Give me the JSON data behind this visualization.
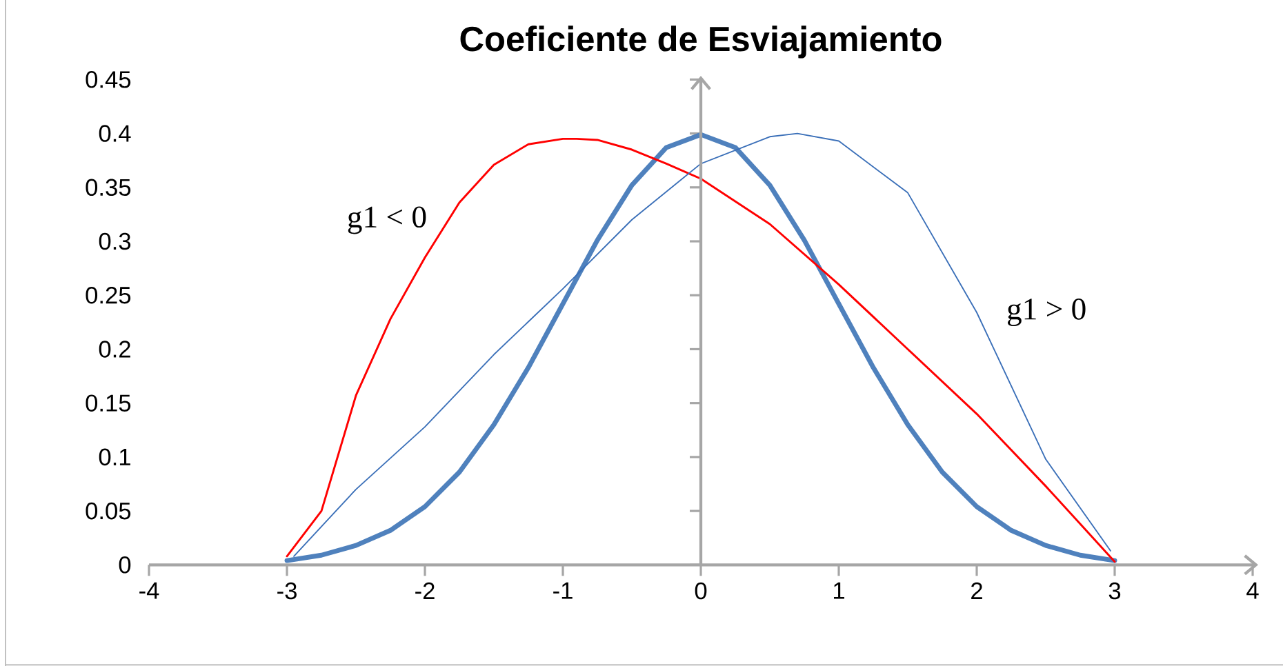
{
  "chart_data": {
    "type": "line",
    "title": "Coeficiente de Esviajamiento",
    "xlim": [
      -4,
      4
    ],
    "xticks": [
      -4,
      -3,
      -2,
      -1,
      0,
      1,
      2,
      3,
      4
    ],
    "ylim": [
      0,
      0.45
    ],
    "yticks": [
      0,
      0.05,
      0.1,
      0.15,
      0.2,
      0.25,
      0.3,
      0.35,
      0.4,
      0.45
    ],
    "marker": "none",
    "line_style": "solid",
    "series": [
      {
        "color": "#4f81bd",
        "x": [
          -3,
          -2.75,
          -2.5,
          -2.25,
          -2,
          -1.75,
          -1.5,
          -1.25,
          -1,
          -0.75,
          -0.5,
          -0.25,
          0,
          0.25,
          0.5,
          0.75,
          1,
          1.25,
          1.5,
          1.75,
          2,
          2.25,
          2.5,
          2.75,
          3
        ],
        "values": [
          0.004,
          0.009,
          0.018,
          0.032,
          0.054,
          0.086,
          0.13,
          0.183,
          0.242,
          0.301,
          0.352,
          0.387,
          0.399,
          0.387,
          0.352,
          0.301,
          0.242,
          0.183,
          0.13,
          0.086,
          0.054,
          0.032,
          0.018,
          0.009,
          0.004
        ]
      },
      {
        "name": "g1 < 0",
        "color": "#ff0000",
        "x": [
          -3,
          -2.75,
          -2.5,
          -2.25,
          -2,
          -1.75,
          -1.5,
          -1.25,
          -1,
          -0.9,
          -0.75,
          -0.5,
          -0.25,
          0,
          0.5,
          1,
          1.5,
          2,
          2.5,
          3
        ],
        "values": [
          0.008,
          0.05,
          0.157,
          0.228,
          0.285,
          0.336,
          0.371,
          0.39,
          0.395,
          0.395,
          0.394,
          0.385,
          0.372,
          0.358,
          0.316,
          0.26,
          0.2,
          0.14,
          0.073,
          0.003
        ]
      },
      {
        "name": "g1 > 0",
        "color": "#3a6fb8",
        "x": [
          -2.95,
          -2.5,
          -2,
          -1.5,
          -1,
          -0.5,
          0,
          0.5,
          0.7,
          1,
          1.5,
          2,
          2.5,
          2.97
        ],
        "values": [
          0.008,
          0.07,
          0.128,
          0.195,
          0.256,
          0.32,
          0.372,
          0.397,
          0.4,
          0.393,
          0.345,
          0.234,
          0.098,
          0.013
        ]
      }
    ]
  }
}
